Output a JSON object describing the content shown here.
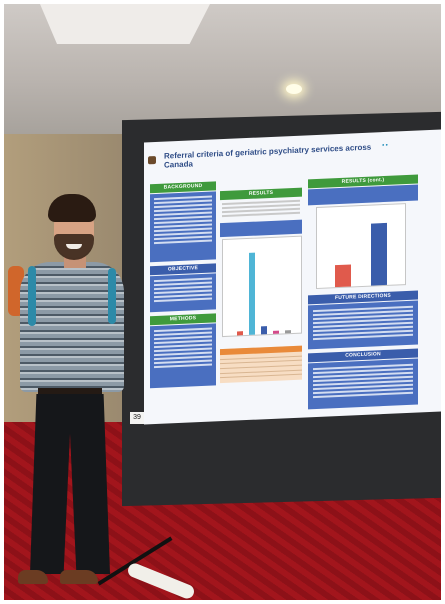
{
  "poster": {
    "title": "Referral criteria of geriatric psychiatry services across Canada",
    "sections": {
      "background": "BACKGROUND",
      "objective": "OBJECTIVE",
      "methods": "METHODS",
      "results": "RESULTS",
      "results_cont": "RESULTS (cont.)",
      "future_directions": "FUTURE DIRECTIONS",
      "conclusion": "CONCLUSION"
    }
  },
  "board_number": "39",
  "colors": {
    "section_green": "#3f9a3c",
    "section_blue": "#3a5dab",
    "poster_title": "#2f4d87",
    "carpet_red": "#a2151c"
  }
}
